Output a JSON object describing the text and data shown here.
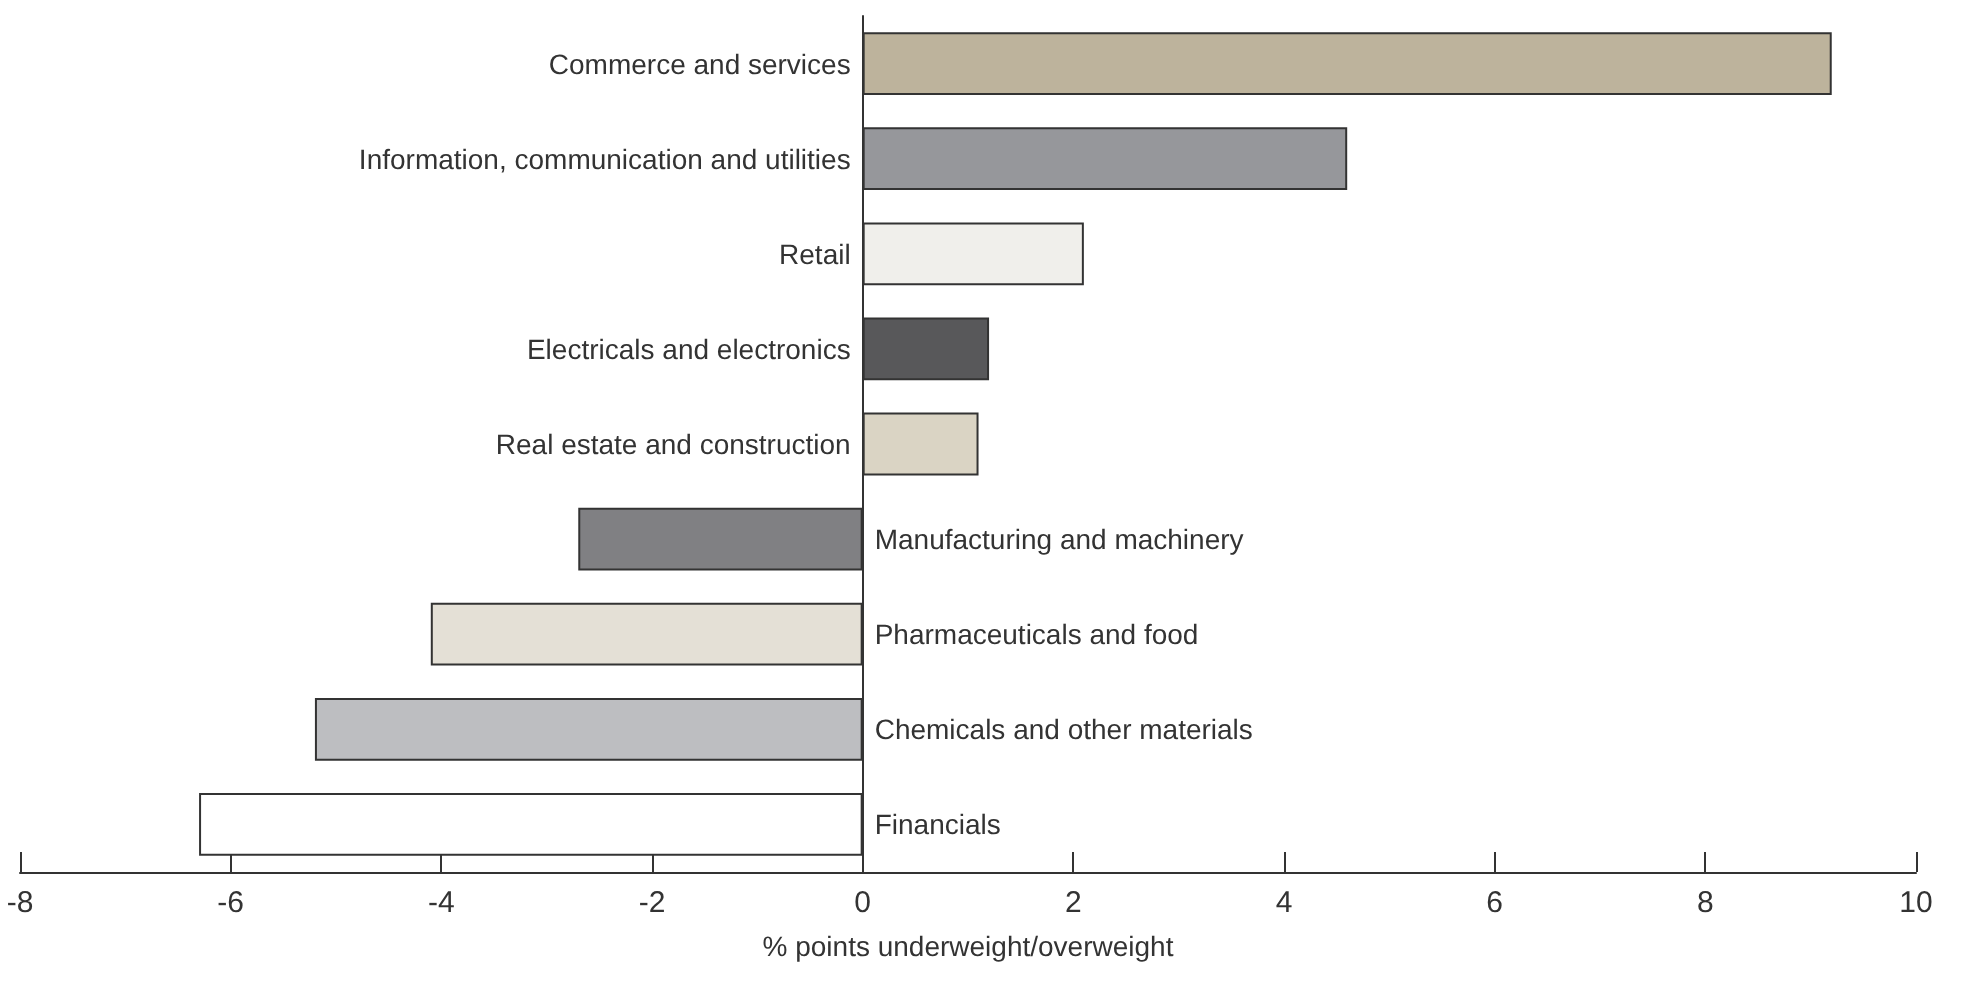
{
  "chart_data": {
    "type": "bar",
    "orientation": "horizontal",
    "xlabel": "% points underweight/overweight",
    "categories": [
      "Commerce and services",
      "Information, communication and utilities",
      "Retail",
      "Electricals and electronics",
      "Real estate and construction",
      "Manufacturing and machinery",
      "Pharmaceuticals and food",
      "Chemicals and other materials",
      "Financials"
    ],
    "values": [
      9.2,
      4.6,
      2.1,
      1.2,
      1.1,
      -2.7,
      -4.1,
      -5.2,
      -6.3
    ],
    "colors": [
      "#bdb39c",
      "#96979b",
      "#f0efeb",
      "#58585a",
      "#dad4c4",
      "#808083",
      "#e4e0d6",
      "#bdbec1",
      "#ffffff"
    ],
    "xlim": [
      -8,
      10
    ],
    "xticks": [
      -8,
      -6,
      -4,
      -2,
      0,
      2,
      4,
      6,
      8,
      10
    ]
  }
}
